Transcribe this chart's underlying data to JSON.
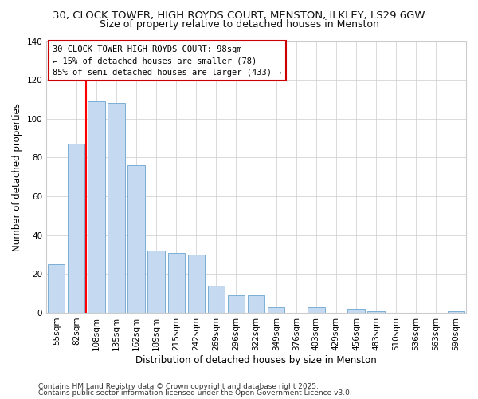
{
  "title_line1": "30, CLOCK TOWER, HIGH ROYDS COURT, MENSTON, ILKLEY, LS29 6GW",
  "title_line2": "Size of property relative to detached houses in Menston",
  "xlabel": "Distribution of detached houses by size in Menston",
  "ylabel": "Number of detached properties",
  "bar_labels": [
    "55sqm",
    "82sqm",
    "108sqm",
    "135sqm",
    "162sqm",
    "189sqm",
    "215sqm",
    "242sqm",
    "269sqm",
    "296sqm",
    "322sqm",
    "349sqm",
    "376sqm",
    "403sqm",
    "429sqm",
    "456sqm",
    "483sqm",
    "510sqm",
    "536sqm",
    "563sqm",
    "590sqm"
  ],
  "bar_values": [
    25,
    87,
    109,
    108,
    76,
    32,
    31,
    30,
    14,
    9,
    9,
    3,
    0,
    3,
    0,
    2,
    1,
    0,
    0,
    0,
    1
  ],
  "bar_color": "#c5d9f1",
  "bar_edge_color": "#7bafd4",
  "grid_color": "#cccccc",
  "vline_color": "#ff0000",
  "annotation_box_text": "30 CLOCK TOWER HIGH ROYDS COURT: 98sqm\n← 15% of detached houses are smaller (78)\n85% of semi-detached houses are larger (433) →",
  "ylim": [
    0,
    140
  ],
  "yticks": [
    0,
    20,
    40,
    60,
    80,
    100,
    120,
    140
  ],
  "footer_line1": "Contains HM Land Registry data © Crown copyright and database right 2025.",
  "footer_line2": "Contains public sector information licensed under the Open Government Licence v3.0.",
  "background_color": "#ffffff",
  "title_fontsize": 9.5,
  "subtitle_fontsize": 9,
  "axis_label_fontsize": 8.5,
  "tick_fontsize": 7.5,
  "annotation_fontsize": 7.5,
  "footer_fontsize": 6.5
}
